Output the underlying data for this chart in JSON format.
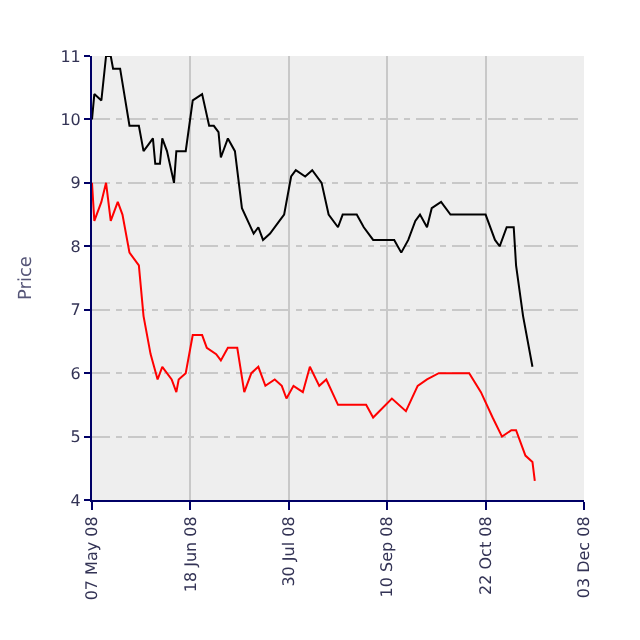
{
  "chart_data": {
    "type": "line",
    "ylabel": "Price",
    "xlim": [
      "2008-05-07",
      "2008-12-03"
    ],
    "xticks": [
      {
        "value": "2008-05-07",
        "label": "07 May 08"
      },
      {
        "value": "2008-06-18",
        "label": "18 Jun 08"
      },
      {
        "value": "2008-07-30",
        "label": "30 Jul 08"
      },
      {
        "value": "2008-09-10",
        "label": "10 Sep 08"
      },
      {
        "value": "2008-10-22",
        "label": "22 Oct 08"
      },
      {
        "value": "2008-12-03",
        "label": "03 Dec 08"
      }
    ],
    "ylim": [
      4,
      11
    ],
    "yticks": [
      4,
      5,
      6,
      7,
      8,
      9,
      10,
      11
    ],
    "grid": true,
    "marker": "none",
    "line_style": "solid",
    "series": [
      {
        "color": "#000000",
        "x": [
          "2008-05-07",
          "2008-05-08",
          "2008-05-11",
          "2008-05-13",
          "2008-05-15",
          "2008-05-16",
          "2008-05-19",
          "2008-05-23",
          "2008-05-27",
          "2008-05-29",
          "2008-05-31",
          "2008-06-02",
          "2008-06-03",
          "2008-06-05",
          "2008-06-06",
          "2008-06-08",
          "2008-06-11",
          "2008-06-12",
          "2008-06-16",
          "2008-06-19",
          "2008-06-23",
          "2008-06-26",
          "2008-06-28",
          "2008-06-30",
          "2008-07-01",
          "2008-07-04",
          "2008-07-07",
          "2008-07-10",
          "2008-07-15",
          "2008-07-17",
          "2008-07-19",
          "2008-07-22",
          "2008-07-26",
          "2008-07-28",
          "2008-07-31",
          "2008-08-02",
          "2008-08-06",
          "2008-08-09",
          "2008-08-13",
          "2008-08-16",
          "2008-08-20",
          "2008-08-22",
          "2008-08-28",
          "2008-08-31",
          "2008-09-04",
          "2008-09-10",
          "2008-09-13",
          "2008-09-16",
          "2008-09-19",
          "2008-09-22",
          "2008-09-24",
          "2008-09-27",
          "2008-09-29",
          "2008-10-03",
          "2008-10-07",
          "2008-10-22",
          "2008-10-26",
          "2008-10-28",
          "2008-10-31",
          "2008-11-03",
          "2008-11-04",
          "2008-11-07",
          "2008-11-11"
        ],
        "values": [
          10.0,
          10.4,
          10.3,
          11.0,
          11.0,
          10.8,
          10.8,
          9.9,
          9.9,
          9.5,
          9.6,
          9.7,
          9.3,
          9.3,
          9.7,
          9.5,
          9.0,
          9.5,
          9.5,
          10.3,
          10.4,
          9.9,
          9.9,
          9.8,
          9.4,
          9.7,
          9.5,
          8.6,
          8.2,
          8.3,
          8.1,
          8.2,
          8.4,
          8.5,
          9.1,
          9.2,
          9.1,
          9.2,
          9.0,
          8.5,
          8.3,
          8.5,
          8.5,
          8.3,
          8.1,
          8.1,
          8.1,
          7.9,
          8.1,
          8.4,
          8.5,
          8.3,
          8.6,
          8.7,
          8.5,
          8.5,
          8.1,
          8.0,
          8.3,
          8.3,
          7.7,
          6.9,
          6.1
        ]
      },
      {
        "color": "#ff0000",
        "x": [
          "2008-05-07",
          "2008-05-08",
          "2008-05-11",
          "2008-05-13",
          "2008-05-15",
          "2008-05-18",
          "2008-05-20",
          "2008-05-23",
          "2008-05-27",
          "2008-05-29",
          "2008-06-01",
          "2008-06-04",
          "2008-06-06",
          "2008-06-10",
          "2008-06-12",
          "2008-06-13",
          "2008-06-16",
          "2008-06-19",
          "2008-06-23",
          "2008-06-25",
          "2008-06-29",
          "2008-07-01",
          "2008-07-04",
          "2008-07-08",
          "2008-07-11",
          "2008-07-14",
          "2008-07-17",
          "2008-07-20",
          "2008-07-24",
          "2008-07-27",
          "2008-07-29",
          "2008-08-01",
          "2008-08-05",
          "2008-08-08",
          "2008-08-12",
          "2008-08-15",
          "2008-08-20",
          "2008-08-26",
          "2008-09-01",
          "2008-09-04",
          "2008-09-12",
          "2008-09-18",
          "2008-09-23",
          "2008-09-27",
          "2008-10-02",
          "2008-10-10",
          "2008-10-15",
          "2008-10-20",
          "2008-10-25",
          "2008-10-29",
          "2008-11-02",
          "2008-11-04",
          "2008-11-08",
          "2008-11-11",
          "2008-11-12"
        ],
        "values": [
          9.0,
          8.4,
          8.7,
          9.0,
          8.4,
          8.7,
          8.5,
          7.9,
          7.7,
          6.9,
          6.3,
          5.9,
          6.1,
          5.9,
          5.7,
          5.9,
          6.0,
          6.6,
          6.6,
          6.4,
          6.3,
          6.2,
          6.4,
          6.4,
          5.7,
          6.0,
          6.1,
          5.8,
          5.9,
          5.8,
          5.6,
          5.8,
          5.7,
          6.1,
          5.8,
          5.9,
          5.5,
          5.5,
          5.5,
          5.3,
          5.6,
          5.4,
          5.8,
          5.9,
          6.0,
          6.0,
          6.0,
          5.7,
          5.3,
          5.0,
          5.1,
          5.1,
          4.7,
          4.6,
          4.3
        ]
      }
    ]
  }
}
